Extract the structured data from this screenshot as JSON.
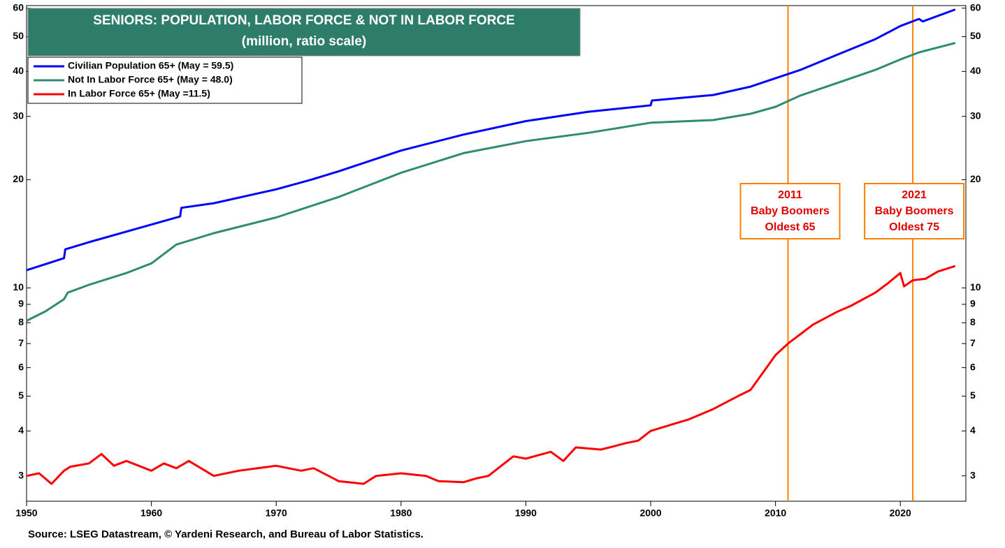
{
  "chart_data": {
    "type": "line",
    "title": "SENIORS: POPULATION, LABOR FORCE & NOT IN LABOR FORCE",
    "subtitle": "(million, ratio scale)",
    "source": "Source: LSEG Datastream, © Yardeni Research, and Bureau of Labor Statistics.",
    "log_scale": true,
    "xlim": [
      1950,
      2025.25
    ],
    "xticks": [
      1950,
      1960,
      1970,
      1980,
      1990,
      2000,
      2010,
      2020
    ],
    "ylim": [
      2.55,
      61
    ],
    "yticks": [
      3,
      4,
      5,
      6,
      7,
      8,
      9,
      10,
      20,
      30,
      40,
      50,
      60
    ],
    "legend": "top-left",
    "series": [
      {
        "name": "Civilian Population 65+ (May = 59.5)",
        "color": "#0000ff",
        "x": [
          1950,
          1953,
          1953.1,
          1955,
          1960,
          1962.3,
          1962.4,
          1965,
          1970,
          1972.8,
          1975,
          1980,
          1985,
          1990,
          1995,
          2000,
          2000.1,
          2005,
          2008,
          2010,
          2012,
          2015,
          2018,
          2020,
          2021.5,
          2021.8,
          2024.4
        ],
        "values": [
          11.2,
          12.1,
          12.8,
          13.4,
          15.0,
          15.8,
          16.7,
          17.2,
          18.8,
          20.0,
          21.1,
          24.1,
          26.7,
          29.1,
          30.9,
          32.2,
          33.2,
          34.4,
          36.3,
          38.3,
          40.4,
          44.6,
          49.2,
          53.5,
          56.0,
          55.1,
          59.5
        ]
      },
      {
        "name": "Not In Labor Force 65+ (May = 48.0)",
        "color": "#2e8b74",
        "x": [
          1950,
          1951.5,
          1953,
          1953.3,
          1955,
          1958,
          1960,
          1962,
          1965,
          1970,
          1975,
          1980,
          1985,
          1990,
          1995,
          2000,
          2005,
          2008,
          2010,
          2012,
          2015,
          2018,
          2020,
          2021.5,
          2024.4
        ],
        "values": [
          8.1,
          8.6,
          9.3,
          9.7,
          10.2,
          11.0,
          11.7,
          13.2,
          14.2,
          15.7,
          17.9,
          20.9,
          23.7,
          25.6,
          27.0,
          28.8,
          29.3,
          30.5,
          31.9,
          34.3,
          37.2,
          40.4,
          43.2,
          45.2,
          48.0
        ]
      },
      {
        "name": "In Labor Force 65+ (May =11.5)",
        "color": "#ff0000",
        "x": [
          1950,
          1951,
          1952,
          1953,
          1953.5,
          1955,
          1956,
          1957,
          1958,
          1960,
          1961,
          1962,
          1963,
          1965,
          1967,
          1970,
          1972,
          1973,
          1975,
          1977,
          1978,
          1980,
          1982,
          1983,
          1985,
          1986,
          1987,
          1989,
          1990,
          1992,
          1993,
          1994,
          1996,
          1997,
          1998,
          1999,
          2000,
          2002,
          2003,
          2005,
          2007,
          2008,
          2010,
          2011,
          2013,
          2015,
          2016,
          2018,
          2019,
          2020,
          2020.3,
          2021,
          2022,
          2023,
          2024.4
        ],
        "values": [
          3.0,
          3.05,
          2.85,
          3.1,
          3.18,
          3.25,
          3.45,
          3.2,
          3.3,
          3.1,
          3.25,
          3.15,
          3.3,
          3.0,
          3.1,
          3.2,
          3.1,
          3.15,
          2.9,
          2.85,
          3.0,
          3.05,
          3.0,
          2.9,
          2.88,
          2.95,
          3.0,
          3.4,
          3.35,
          3.5,
          3.3,
          3.6,
          3.55,
          3.62,
          3.7,
          3.76,
          4.0,
          4.2,
          4.3,
          4.6,
          5.0,
          5.2,
          6.5,
          7.0,
          7.9,
          8.6,
          8.9,
          9.7,
          10.3,
          11.0,
          10.1,
          10.5,
          10.6,
          11.1,
          11.5
        ]
      }
    ],
    "annotations": [
      {
        "x": 2011,
        "color": "#ff8000",
        "lines": [
          "2011",
          "Baby Boomers",
          "Oldest 65"
        ]
      },
      {
        "x": 2021,
        "color": "#ff8000",
        "lines": [
          "2021",
          "Baby Boomers",
          "Oldest 75"
        ]
      }
    ]
  }
}
